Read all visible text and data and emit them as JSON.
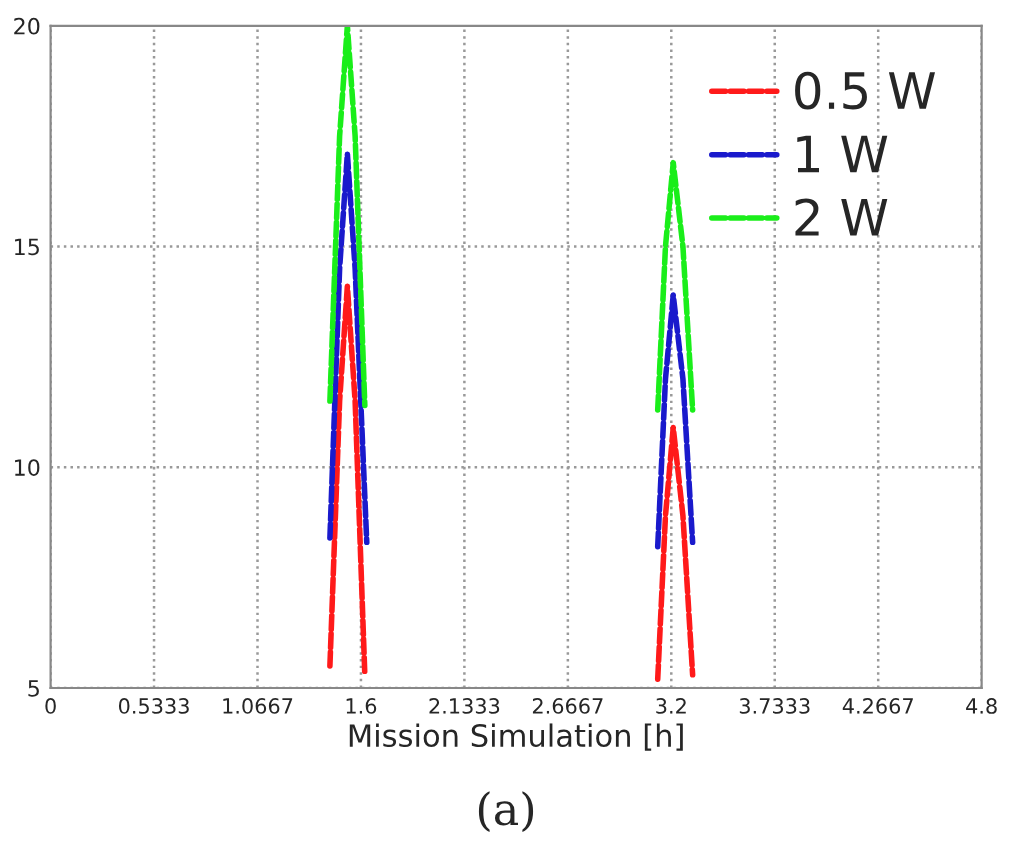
{
  "chart_data": {
    "type": "line",
    "xlabel": "Mission Simulation [h]",
    "annotations": [
      "(a)"
    ],
    "xlim": [
      0,
      4.8
    ],
    "ylim": [
      5,
      20
    ],
    "xticks": [
      0,
      0.5333,
      1.0667,
      1.6,
      2.1333,
      2.6667,
      3.2,
      3.7333,
      4.2667,
      4.8
    ],
    "yticks": [
      5,
      10,
      15,
      20
    ],
    "grid": true,
    "legend": "top right",
    "line_style": "dashed",
    "marker": "none",
    "series": [
      {
        "name": "0.5 W",
        "color": "#ff1a1a",
        "x": [
          1.44,
          1.49,
          1.53,
          1.57,
          1.62,
          null,
          3.13,
          3.17,
          3.21,
          3.26,
          3.31
        ],
        "values": [
          5.5,
          11.5,
          14.1,
          11.5,
          5.3,
          null,
          5.2,
          8.9,
          10.9,
          8.9,
          5.3
        ]
      },
      {
        "name": "1 W",
        "color": "#1a1acc",
        "x": [
          1.44,
          1.49,
          1.53,
          1.57,
          1.63,
          null,
          3.13,
          3.17,
          3.21,
          3.26,
          3.31
        ],
        "values": [
          8.4,
          14.5,
          17.1,
          14.5,
          8.3,
          null,
          8.2,
          12.0,
          13.9,
          12.0,
          8.3
        ]
      },
      {
        "name": "2 W",
        "color": "#1aee1a",
        "x": [
          1.44,
          1.49,
          1.53,
          1.57,
          1.62,
          null,
          3.13,
          3.17,
          3.21,
          3.26,
          3.31
        ],
        "values": [
          11.5,
          17.5,
          20,
          17.5,
          11.4,
          null,
          11.3,
          15.0,
          16.9,
          15.0,
          11.3
        ]
      }
    ]
  }
}
